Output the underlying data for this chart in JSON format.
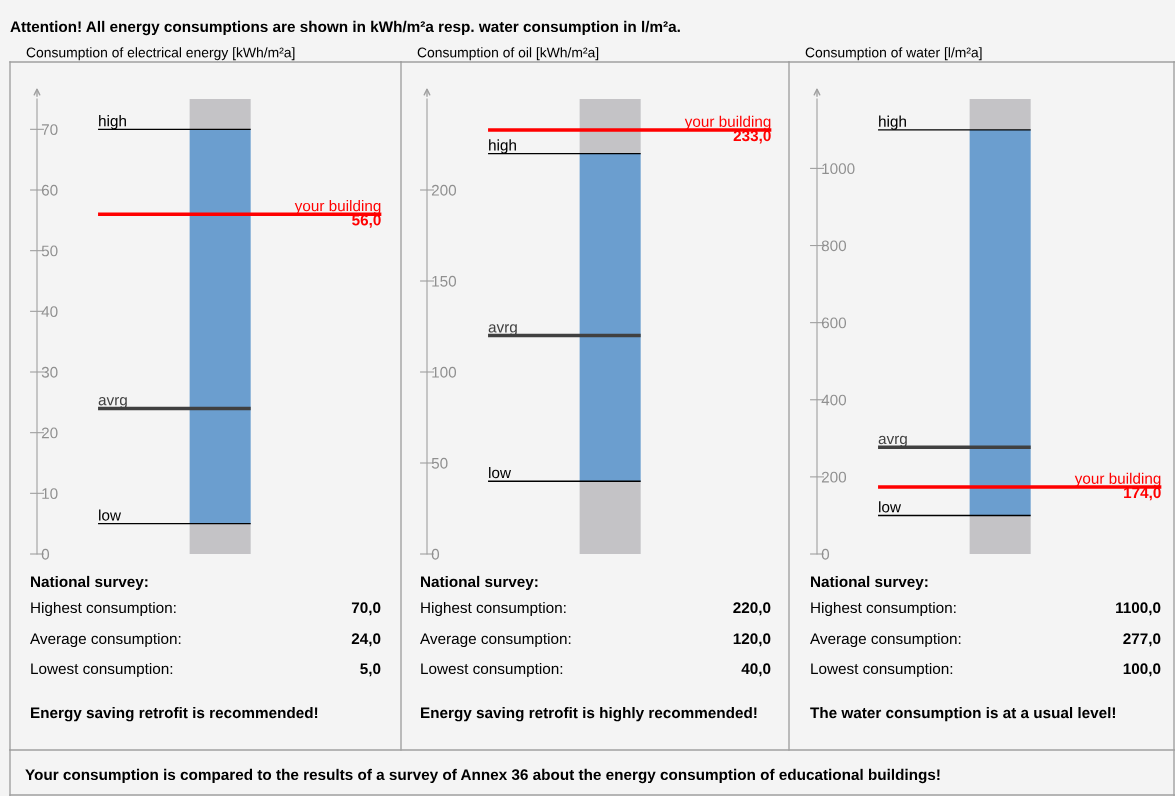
{
  "chart_data": [
    {
      "type": "other",
      "annotations": [
        "Attention! All energy consumptions are shown in kWh/m²a resp. water consumption in l/m²a.",
        "Your consumption is compared to the results of a survey of Annex 36 about the energy consumption of educational buildings!"
      ]
    },
    {
      "type": "bar",
      "title": "Consumption of electrical energy [kWh/m²a]",
      "categories": [
        null
      ],
      "stacked": true,
      "series": [
        {
          "color": "#c4c3c6",
          "values": [
            5
          ]
        },
        {
          "color": "#6b9ecf",
          "values": [
            65
          ]
        },
        {
          "color": "#c4c3c6",
          "values": [
            5
          ]
        }
      ],
      "ylim": [
        0,
        75
      ],
      "yticks": [
        0,
        10,
        20,
        30,
        40,
        50,
        60,
        70
      ],
      "ref_lines": [
        {
          "axis": "y",
          "value": 70,
          "label": "high",
          "color": "#000000",
          "line_style": "solid"
        },
        {
          "axis": "y",
          "value": 24,
          "label": "avrg",
          "color": "#404040",
          "line_style": "solid"
        },
        {
          "axis": "y",
          "value": 5,
          "label": "low",
          "color": "#000000",
          "line_style": "solid"
        },
        {
          "axis": "y",
          "value": 56,
          "label": "your building",
          "color": "#ff0000",
          "line_style": "solid"
        }
      ],
      "annotations": [
        {
          "text": "56,0",
          "y": 56
        },
        "National survey:",
        "Highest consumption:",
        "70,0",
        "Average consumption:",
        "24,0",
        "Lowest consumption:",
        "5,0",
        "Energy saving retrofit is recommended!"
      ]
    },
    {
      "type": "bar",
      "title": "Consumption of oil [kWh/m²a]",
      "categories": [
        null
      ],
      "stacked": true,
      "series": [
        {
          "color": "#c4c3c6",
          "values": [
            40
          ]
        },
        {
          "color": "#6b9ecf",
          "values": [
            180
          ]
        },
        {
          "color": "#c4c3c6",
          "values": [
            30
          ]
        }
      ],
      "ylim": [
        0,
        250
      ],
      "yticks": [
        0,
        50,
        100,
        150,
        200
      ],
      "ref_lines": [
        {
          "axis": "y",
          "value": 220,
          "label": "high",
          "color": "#000000",
          "line_style": "solid"
        },
        {
          "axis": "y",
          "value": 120,
          "label": "avrg",
          "color": "#404040",
          "line_style": "solid"
        },
        {
          "axis": "y",
          "value": 40,
          "label": "low",
          "color": "#000000",
          "line_style": "solid"
        },
        {
          "axis": "y",
          "value": 233,
          "label": "your building",
          "color": "#ff0000",
          "line_style": "solid"
        }
      ],
      "annotations": [
        {
          "text": "233,0",
          "y": 233
        },
        "National survey:",
        "Highest consumption:",
        "220,0",
        "Average consumption:",
        "120,0",
        "Lowest consumption:",
        "40,0",
        "Energy saving retrofit is highly recommended!"
      ]
    },
    {
      "type": "bar",
      "title": "Consumption of water [l/m²a]",
      "categories": [
        null
      ],
      "stacked": true,
      "series": [
        {
          "color": "#c4c3c6",
          "values": [
            100
          ]
        },
        {
          "color": "#6b9ecf",
          "values": [
            1000
          ]
        },
        {
          "color": "#c4c3c6",
          "values": [
            80
          ]
        }
      ],
      "ylim": [
        0,
        1180
      ],
      "yticks": [
        0,
        200,
        400,
        600,
        800,
        1000
      ],
      "ref_lines": [
        {
          "axis": "y",
          "value": 1100,
          "label": "high",
          "color": "#000000",
          "line_style": "solid"
        },
        {
          "axis": "y",
          "value": 277,
          "label": "avrg",
          "color": "#404040",
          "line_style": "solid"
        },
        {
          "axis": "y",
          "value": 100,
          "label": "low",
          "color": "#000000",
          "line_style": "solid"
        },
        {
          "axis": "y",
          "value": 174,
          "label": "your building",
          "color": "#ff0000",
          "line_style": "solid"
        }
      ],
      "annotations": [
        {
          "text": "174,0",
          "y": 174
        },
        "National survey:",
        "Highest consumption:",
        "1100,0",
        "Average consumption:",
        "277,0",
        "Lowest consumption:",
        "100,0",
        "The water consumption is at a usual level!"
      ]
    }
  ]
}
